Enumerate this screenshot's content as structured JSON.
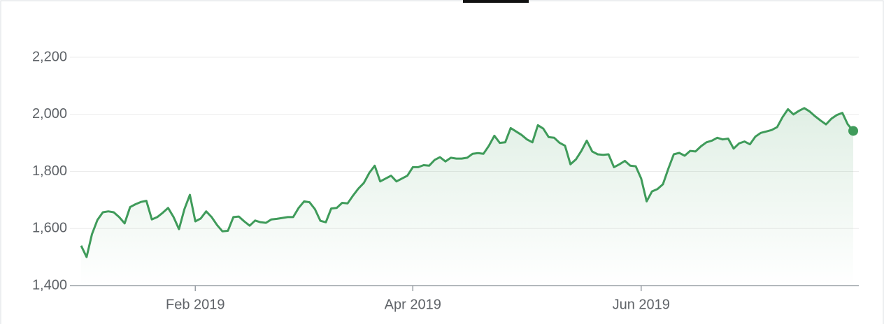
{
  "chart_data": {
    "type": "line",
    "categories": [
      null,
      null,
      null,
      null,
      null,
      null,
      null,
      null,
      null,
      null,
      null,
      null,
      null,
      null,
      null,
      null,
      null,
      null,
      null,
      null,
      null,
      "Feb 2019",
      null,
      null,
      null,
      null,
      null,
      null,
      null,
      null,
      null,
      null,
      null,
      null,
      null,
      null,
      null,
      null,
      null,
      null,
      null,
      null,
      null,
      null,
      null,
      null,
      null,
      null,
      null,
      null,
      null,
      null,
      null,
      null,
      null,
      null,
      null,
      null,
      null,
      null,
      null,
      "Apr 2019",
      null,
      null,
      null,
      null,
      null,
      null,
      null,
      null,
      null,
      null,
      null,
      null,
      null,
      null,
      null,
      null,
      null,
      null,
      null,
      null,
      null,
      null,
      null,
      null,
      null,
      null,
      null,
      null,
      null,
      null,
      null,
      null,
      null,
      null,
      null,
      null,
      null,
      null,
      null,
      null,
      null,
      "Jun 2019",
      null,
      null,
      null,
      null,
      null,
      null,
      null,
      null,
      null,
      null,
      null,
      null,
      null,
      null,
      null,
      null,
      null,
      null,
      null,
      null,
      null,
      null,
      null,
      null,
      null,
      null,
      null,
      null,
      null,
      null,
      null,
      null,
      null,
      null,
      null,
      null,
      null,
      null,
      null
    ],
    "values": [
      1540,
      1500,
      1580,
      1630,
      1657,
      1660,
      1657,
      1640,
      1618,
      1675,
      1685,
      1693,
      1697,
      1632,
      1640,
      1655,
      1672,
      1640,
      1598,
      1668,
      1718,
      1625,
      1635,
      1660,
      1640,
      1612,
      1590,
      1592,
      1640,
      1642,
      1625,
      1610,
      1628,
      1622,
      1620,
      1632,
      1634,
      1637,
      1640,
      1640,
      1672,
      1695,
      1692,
      1668,
      1627,
      1622,
      1670,
      1672,
      1690,
      1688,
      1715,
      1740,
      1760,
      1795,
      1820,
      1765,
      1775,
      1785,
      1765,
      1775,
      1785,
      1815,
      1815,
      1822,
      1820,
      1840,
      1850,
      1835,
      1848,
      1845,
      1845,
      1848,
      1862,
      1864,
      1862,
      1890,
      1925,
      1900,
      1902,
      1952,
      1940,
      1928,
      1912,
      1902,
      1962,
      1950,
      1920,
      1918,
      1900,
      1890,
      1825,
      1842,
      1872,
      1908,
      1870,
      1860,
      1858,
      1860,
      1815,
      1825,
      1837,
      1820,
      1818,
      1775,
      1695,
      1730,
      1738,
      1755,
      1810,
      1860,
      1865,
      1855,
      1872,
      1870,
      1888,
      1902,
      1908,
      1918,
      1912,
      1915,
      1880,
      1898,
      1905,
      1895,
      1922,
      1935,
      1940,
      1945,
      1955,
      1990,
      2018,
      2000,
      2012,
      2022,
      2010,
      1993,
      1978,
      1965,
      1985,
      1998,
      2005,
      1965,
      1942
    ],
    "color": "#3f9b5a",
    "ylim": [
      1400,
      2200
    ],
    "yticks": [
      {
        "value": 1400,
        "label": "1,400"
      },
      {
        "value": 1600,
        "label": "1,600"
      },
      {
        "value": 1800,
        "label": "1,800"
      },
      {
        "value": 2000,
        "label": "2,000"
      },
      {
        "value": 2200,
        "label": "2,200"
      }
    ],
    "grid": true
  }
}
